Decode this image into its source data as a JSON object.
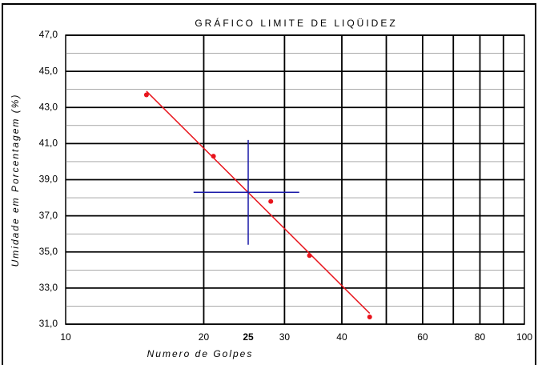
{
  "chart_data": {
    "type": "scatter",
    "title": "GRÁFICO LIMITE DE LIQÜIDEZ",
    "ylabel": "Umidade em Porcentagem (%)",
    "xlabel": "Numero de Golpes",
    "xscale": "log",
    "xlim": [
      10,
      100
    ],
    "ylim": [
      31,
      47
    ],
    "xticks": [
      10,
      20,
      25,
      30,
      40,
      60,
      80,
      100
    ],
    "xgrid": [
      20,
      30,
      40,
      50,
      60,
      70,
      80,
      90
    ],
    "yticks": [
      {
        "value": 31,
        "label": "31,0"
      },
      {
        "value": 33,
        "label": "33,0"
      },
      {
        "value": 35,
        "label": "35,0"
      },
      {
        "value": 37,
        "label": "37,0"
      },
      {
        "value": 39,
        "label": "39,0"
      },
      {
        "value": 41,
        "label": "41,0"
      },
      {
        "value": 43,
        "label": "43,0"
      },
      {
        "value": 45,
        "label": "45,0"
      },
      {
        "value": 47,
        "label": "47,0"
      }
    ],
    "yminor": [
      32,
      34,
      36,
      38,
      40,
      42,
      44,
      46
    ],
    "x": [
      15,
      21,
      28,
      34,
      46
    ],
    "values": [
      43.7,
      40.3,
      37.8,
      34.8,
      31.4
    ],
    "color": "#e8141c",
    "trend": {
      "x": [
        15,
        46
      ],
      "y": [
        43.9,
        31.6
      ],
      "color": "#e8141c"
    },
    "crosshair": {
      "x": 25,
      "y": 38.3,
      "xrange": [
        19,
        32.3
      ],
      "yrange": [
        35.4,
        41.2
      ],
      "color": "#1a1aa8"
    }
  }
}
